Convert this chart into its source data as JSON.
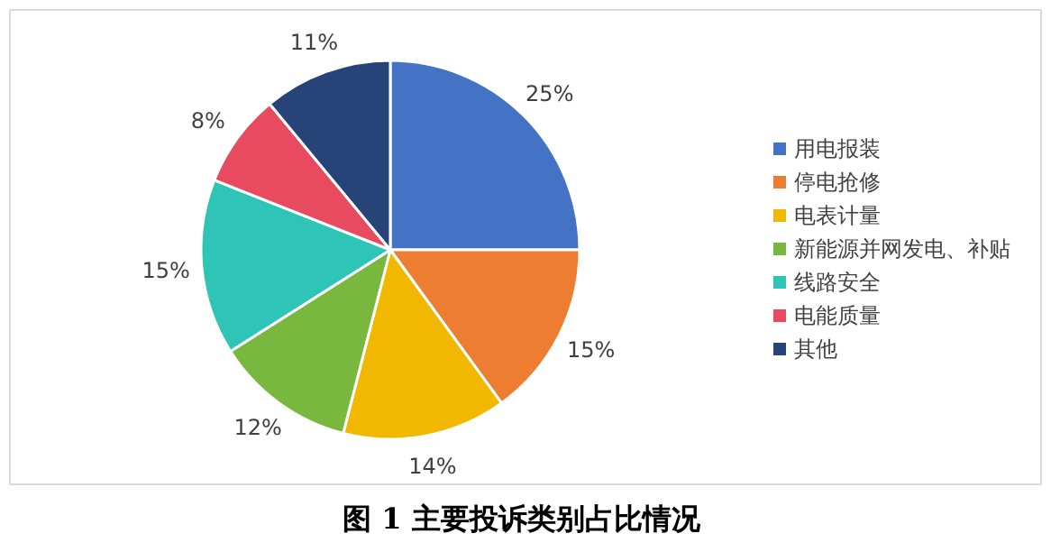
{
  "chart_data": {
    "type": "pie",
    "title": "图 1  主要投诉类别占比情况",
    "categories": [
      "用电报装",
      "停电抢修",
      "电表计量",
      "新能源并网发电、补贴",
      "线路安全",
      "电能质量",
      "其他"
    ],
    "values": [
      25,
      15,
      14,
      12,
      15,
      8,
      11
    ],
    "colors": [
      "#4472c4",
      "#ed7d31",
      "#f2b800",
      "#79b83e",
      "#2ec4b6",
      "#e84a5f",
      "#264478"
    ],
    "value_labels": [
      "25%",
      "15%",
      "14%",
      "12%",
      "15%",
      "8%",
      "11%"
    ],
    "legend": "right"
  }
}
